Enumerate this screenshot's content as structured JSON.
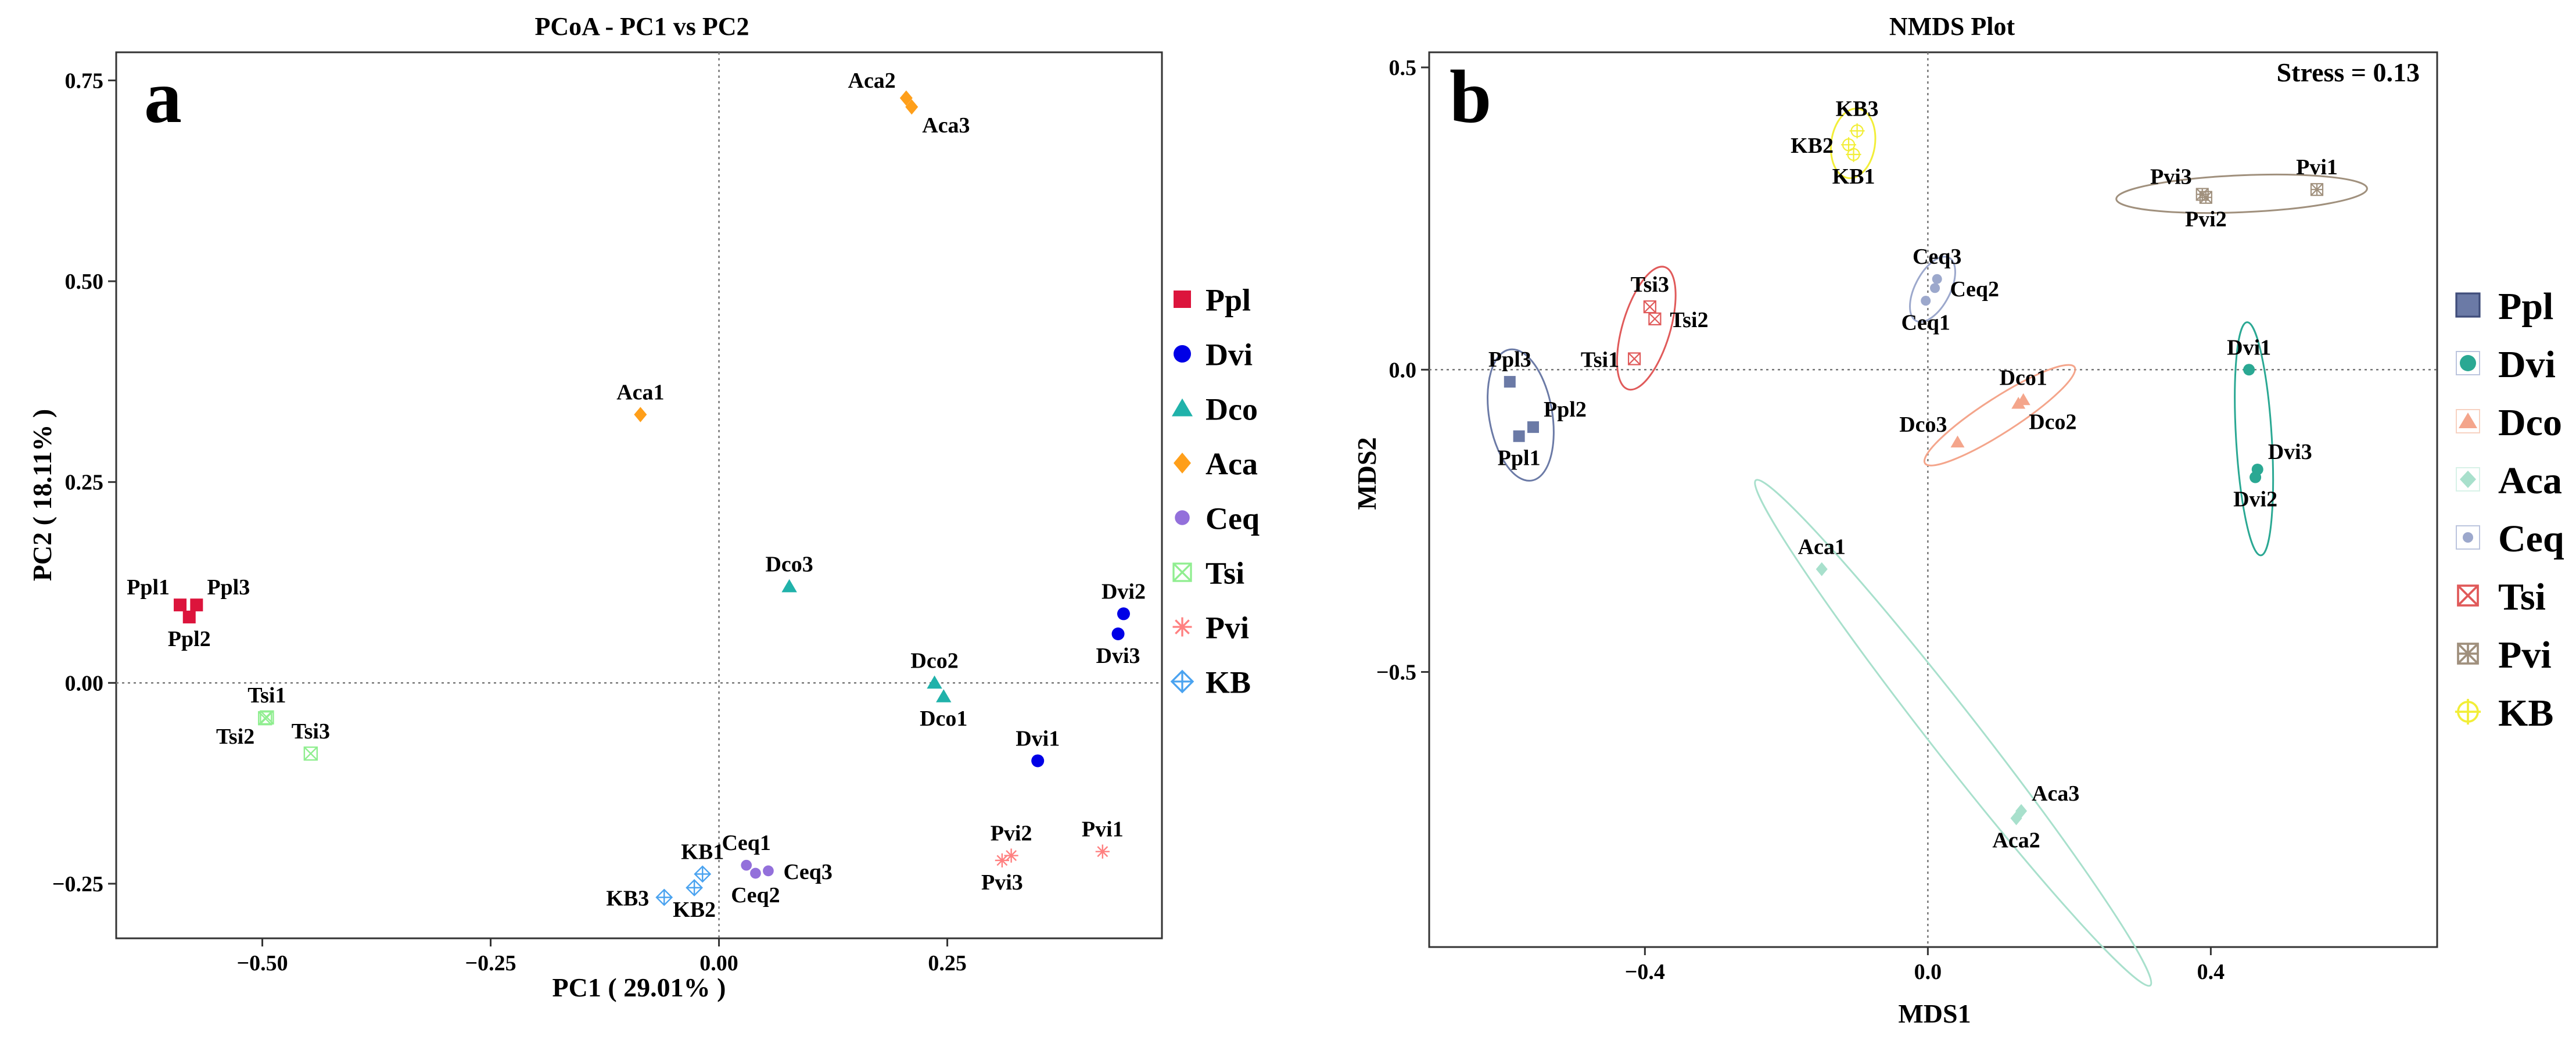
{
  "chart_data": [
    {
      "type": "scatter",
      "panel_label": "a",
      "title": "PCoA - PC1 vs PC2",
      "xlabel": "PC1 ( 29.01% )",
      "ylabel": "PC2 ( 18.11% )",
      "xlim": [
        -0.66,
        0.485
      ],
      "ylim": [
        -0.318,
        0.785
      ],
      "xticks": [
        -0.5,
        -0.25,
        0.0,
        0.25
      ],
      "xtick_labels": [
        "−0.50",
        "−0.25",
        "0.00",
        "0.25"
      ],
      "yticks": [
        -0.25,
        0.0,
        0.25,
        0.5,
        0.75
      ],
      "ytick_labels": [
        "−0.25",
        "0.00",
        "0.25",
        "0.50",
        "0.75"
      ],
      "refline_x": 0,
      "refline_y": 0,
      "legend_position": "right",
      "legend": [
        {
          "label": "Ppl",
          "group": "Ppl"
        },
        {
          "label": "Dvi",
          "group": "Dvi"
        },
        {
          "label": "Dco",
          "group": "Dco"
        },
        {
          "label": "Aca",
          "group": "Aca"
        },
        {
          "label": "Ceq",
          "group": "Ceq"
        },
        {
          "label": "Tsi",
          "group": "Tsi"
        },
        {
          "label": "Pvi",
          "group": "Pvi"
        },
        {
          "label": "KB",
          "group": "KB"
        }
      ],
      "groups": {
        "Ppl": {
          "color": "#dc143c",
          "shape": "square"
        },
        "Dvi": {
          "color": "#0000e6",
          "shape": "circle"
        },
        "Dco": {
          "color": "#20b2aa",
          "shape": "triangle"
        },
        "Aca": {
          "color": "#ff9f1a",
          "shape": "diamond"
        },
        "Ceq": {
          "color": "#9370db",
          "shape": "smallcircle"
        },
        "Tsi": {
          "color": "#90ee90",
          "shape": "boxx"
        },
        "Pvi": {
          "color": "#ff8080",
          "shape": "asterisk"
        },
        "KB": {
          "color": "#4aa3f0",
          "shape": "diamondplus"
        }
      },
      "points": [
        {
          "label": "Ppl1",
          "group": "Ppl",
          "x": -0.59,
          "y": 0.097,
          "label_pos": "nw"
        },
        {
          "label": "Ppl3",
          "group": "Ppl",
          "x": -0.572,
          "y": 0.097,
          "label_pos": "ne"
        },
        {
          "label": "Ppl2",
          "group": "Ppl",
          "x": -0.58,
          "y": 0.082,
          "label_pos": "s"
        },
        {
          "label": "Dvi2",
          "group": "Dvi",
          "x": 0.443,
          "y": 0.086,
          "label_pos": "n"
        },
        {
          "label": "Dvi3",
          "group": "Dvi",
          "x": 0.437,
          "y": 0.061,
          "label_pos": "s"
        },
        {
          "label": "Dvi1",
          "group": "Dvi",
          "x": 0.349,
          "y": -0.097,
          "label_pos": "n"
        },
        {
          "label": "Dco3",
          "group": "Dco",
          "x": 0.077,
          "y": 0.12,
          "label_pos": "n"
        },
        {
          "label": "Dco2",
          "group": "Dco",
          "x": 0.236,
          "y": 0.0,
          "label_pos": "n"
        },
        {
          "label": "Dco1",
          "group": "Dco",
          "x": 0.246,
          "y": -0.017,
          "label_pos": "s"
        },
        {
          "label": "Aca2",
          "group": "Aca",
          "x": 0.205,
          "y": 0.728,
          "label_pos": "nw"
        },
        {
          "label": "Aca3",
          "group": "Aca",
          "x": 0.211,
          "y": 0.717,
          "label_pos": "se"
        },
        {
          "label": "Aca1",
          "group": "Aca",
          "x": -0.086,
          "y": 0.334,
          "label_pos": "n"
        },
        {
          "label": "Ceq1",
          "group": "Ceq",
          "x": 0.03,
          "y": -0.227,
          "label_pos": "n"
        },
        {
          "label": "Ceq3",
          "group": "Ceq",
          "x": 0.054,
          "y": -0.234,
          "label_pos": "e"
        },
        {
          "label": "Ceq2",
          "group": "Ceq",
          "x": 0.04,
          "y": -0.237,
          "label_pos": "s"
        },
        {
          "label": "Tsi1",
          "group": "Tsi",
          "x": -0.495,
          "y": -0.043,
          "label_pos": "n"
        },
        {
          "label": "Tsi2",
          "group": "Tsi",
          "x": -0.497,
          "y": -0.044,
          "label_pos": "sw"
        },
        {
          "label": "Tsi3",
          "group": "Tsi",
          "x": -0.447,
          "y": -0.088,
          "label_pos": "n"
        },
        {
          "label": "Pvi2",
          "group": "Pvi",
          "x": 0.32,
          "y": -0.215,
          "label_pos": "n"
        },
        {
          "label": "Pvi3",
          "group": "Pvi",
          "x": 0.31,
          "y": -0.221,
          "label_pos": "s"
        },
        {
          "label": "Pvi1",
          "group": "Pvi",
          "x": 0.42,
          "y": -0.21,
          "label_pos": "n"
        },
        {
          "label": "KB1",
          "group": "KB",
          "x": -0.018,
          "y": -0.238,
          "label_pos": "n"
        },
        {
          "label": "KB2",
          "group": "KB",
          "x": -0.027,
          "y": -0.255,
          "label_pos": "s"
        },
        {
          "label": "KB3",
          "group": "KB",
          "x": -0.06,
          "y": -0.267,
          "label_pos": "w"
        }
      ]
    },
    {
      "type": "scatter",
      "panel_label": "b",
      "title": "NMDS Plot",
      "xlabel": "MDS1",
      "ylabel": "MDS2",
      "annotation": "Stress = 0.13",
      "xlim": [
        -0.705,
        0.72
      ],
      "ylim": [
        -0.955,
        0.525
      ],
      "xticks": [
        -0.4,
        0.0,
        0.4
      ],
      "xtick_labels": [
        "−0.4",
        "0.0",
        "0.4"
      ],
      "yticks": [
        -0.5,
        0.0,
        0.5
      ],
      "ytick_labels": [
        "−0.5",
        "0.0",
        "0.5"
      ],
      "refline_x": 0,
      "refline_y": 0,
      "legend_position": "right",
      "legend": [
        {
          "label": "Ppl",
          "group": "Ppl"
        },
        {
          "label": "Dvi",
          "group": "Dvi"
        },
        {
          "label": "Dco",
          "group": "Dco"
        },
        {
          "label": "Aca",
          "group": "Aca"
        },
        {
          "label": "Ceq",
          "group": "Ceq"
        },
        {
          "label": "Tsi",
          "group": "Tsi"
        },
        {
          "label": "Pvi",
          "group": "Pvi"
        },
        {
          "label": "KB",
          "group": "KB"
        }
      ],
      "groups": {
        "Ppl": {
          "color": "#6b7aa6",
          "shape": "square"
        },
        "Dvi": {
          "color": "#2aa893",
          "shape": "circle"
        },
        "Dco": {
          "color": "#f4a58b",
          "shape": "triangle"
        },
        "Aca": {
          "color": "#a8e0cc",
          "shape": "diamond"
        },
        "Ceq": {
          "color": "#9ca8cc",
          "shape": "smallcircle"
        },
        "Tsi": {
          "color": "#e05a5a",
          "shape": "boxx"
        },
        "Pvi": {
          "color": "#a0907d",
          "shape": "boxasterisk"
        },
        "KB": {
          "color": "#f2ee38",
          "shape": "circleplus"
        }
      },
      "points": [
        {
          "label": "Ppl3",
          "group": "Ppl",
          "x": -0.591,
          "y": -0.02,
          "label_pos": "n"
        },
        {
          "label": "Ppl2",
          "group": "Ppl",
          "x": -0.558,
          "y": -0.095,
          "label_pos": "ne"
        },
        {
          "label": "Ppl1",
          "group": "Ppl",
          "x": -0.578,
          "y": -0.11,
          "label_pos": "s"
        },
        {
          "label": "Dvi1",
          "group": "Dvi",
          "x": 0.454,
          "y": 0.0,
          "label_pos": "n"
        },
        {
          "label": "Dvi3",
          "group": "Dvi",
          "x": 0.466,
          "y": -0.165,
          "label_pos": "ne"
        },
        {
          "label": "Dvi2",
          "group": "Dvi",
          "x": 0.463,
          "y": -0.178,
          "label_pos": "s"
        },
        {
          "label": "Dco1",
          "group": "Dco",
          "x": 0.135,
          "y": -0.05,
          "label_pos": "n"
        },
        {
          "label": "Dco2",
          "group": "Dco",
          "x": 0.128,
          "y": -0.056,
          "label_pos": "se"
        },
        {
          "label": "Dco3",
          "group": "Dco",
          "x": 0.042,
          "y": -0.12,
          "label_pos": "nw"
        },
        {
          "label": "Aca1",
          "group": "Aca",
          "x": -0.15,
          "y": -0.33,
          "label_pos": "n"
        },
        {
          "label": "Aca3",
          "group": "Aca",
          "x": 0.132,
          "y": -0.73,
          "label_pos": "ne"
        },
        {
          "label": "Aca2",
          "group": "Aca",
          "x": 0.125,
          "y": -0.742,
          "label_pos": "s"
        },
        {
          "label": "Ceq3",
          "group": "Ceq",
          "x": 0.013,
          "y": 0.15,
          "label_pos": "n"
        },
        {
          "label": "Ceq2",
          "group": "Ceq",
          "x": 0.01,
          "y": 0.135,
          "label_pos": "e"
        },
        {
          "label": "Ceq1",
          "group": "Ceq",
          "x": -0.003,
          "y": 0.114,
          "label_pos": "s"
        },
        {
          "label": "Tsi3",
          "group": "Tsi",
          "x": -0.393,
          "y": 0.104,
          "label_pos": "n"
        },
        {
          "label": "Tsi2",
          "group": "Tsi",
          "x": -0.386,
          "y": 0.084,
          "label_pos": "e"
        },
        {
          "label": "Tsi1",
          "group": "Tsi",
          "x": -0.415,
          "y": 0.018,
          "label_pos": "w"
        },
        {
          "label": "Pvi3",
          "group": "Pvi",
          "x": 0.388,
          "y": 0.29,
          "label_pos": "nw"
        },
        {
          "label": "Pvi2",
          "group": "Pvi",
          "x": 0.393,
          "y": 0.285,
          "label_pos": "s"
        },
        {
          "label": "Pvi1",
          "group": "Pvi",
          "x": 0.55,
          "y": 0.298,
          "label_pos": "n"
        },
        {
          "label": "KB3",
          "group": "KB",
          "x": -0.1,
          "y": 0.395,
          "label_pos": "n"
        },
        {
          "label": "KB2",
          "group": "KB",
          "x": -0.112,
          "y": 0.372,
          "label_pos": "w"
        },
        {
          "label": "KB1",
          "group": "KB",
          "x": -0.105,
          "y": 0.356,
          "label_pos": "s"
        }
      ],
      "ellipse_groups": [
        "Ppl",
        "Dvi",
        "Dco",
        "Aca",
        "Ceq",
        "Tsi",
        "Pvi",
        "KB"
      ]
    }
  ]
}
